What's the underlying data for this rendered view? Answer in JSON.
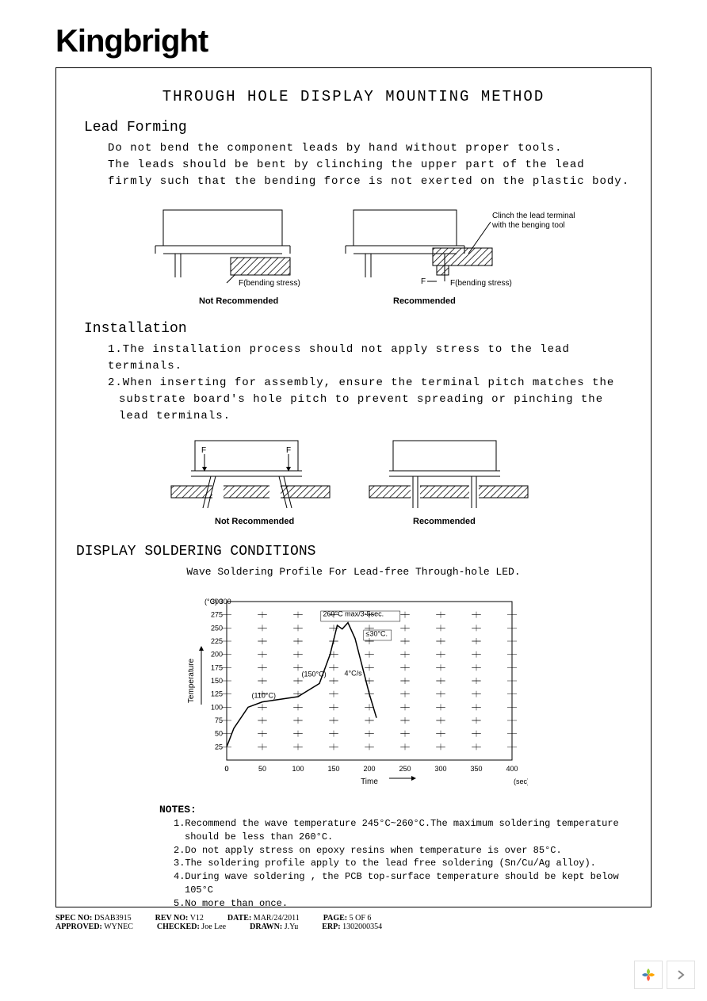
{
  "brand": "Kingbright",
  "main_title": "THROUGH HOLE DISPLAY MOUNTING METHOD",
  "lead_forming": {
    "title": "Lead Forming",
    "p1": "Do not bend the component leads by hand without proper tools.",
    "p2": "The leads should be bent by clinching the upper part of the lead firmly such that the bending force is not exerted on the plastic body."
  },
  "diagram1": {
    "not_rec": "Not Recommended",
    "rec": "Recommended",
    "stress": "F(bending stress)",
    "f": "F",
    "clinch": "Clinch the lead terminal with the benging tool"
  },
  "installation": {
    "title": "Installation",
    "p1": "1.The installation process should not apply stress to the lead terminals.",
    "p2": "2.When inserting for assembly, ensure the terminal pitch matches the substrate board's  hole pitch to prevent spreading or pinching the lead terminals."
  },
  "diagram2": {
    "not_rec": "Not Recommended",
    "rec": "Recommended",
    "f": "F"
  },
  "soldering": {
    "title": "DISPLAY SOLDERING CONDITIONS",
    "chart_title": "Wave Soldering Profile For Lead-free Through-hole LED."
  },
  "chart": {
    "type": "line",
    "background_color": "#ffffff",
    "axis_color": "#000000",
    "grid_color": "#000000",
    "line_color": "#000000",
    "line_width": 1.5,
    "xlabel": "Time",
    "xunit": "(sec)",
    "ylabel": "Temperature",
    "yunit": "(°C)",
    "xlim": [
      0,
      400
    ],
    "ylim": [
      0,
      300
    ],
    "xtick_step": 50,
    "ytick_step": 25,
    "xticks": [
      0,
      50,
      100,
      150,
      200,
      250,
      300,
      350,
      400
    ],
    "yticks": [
      25,
      50,
      75,
      100,
      125,
      150,
      175,
      200,
      225,
      250,
      275,
      300
    ],
    "profile_points": [
      [
        0,
        25
      ],
      [
        10,
        60
      ],
      [
        30,
        100
      ],
      [
        50,
        110
      ],
      [
        100,
        120
      ],
      [
        130,
        145
      ],
      [
        145,
        200
      ],
      [
        155,
        255
      ],
      [
        162,
        248
      ],
      [
        170,
        260
      ],
      [
        180,
        230
      ],
      [
        200,
        125
      ],
      [
        210,
        80
      ]
    ],
    "annotations": {
      "a1": "(110°C)",
      "a2": "(150°C)",
      "a3": "260°C max/3-5sec.",
      "a4": "4°C/s",
      "a5": "≤30°C."
    },
    "label_fontsize": 10,
    "tick_fontsize": 9
  },
  "notes": {
    "title": "NOTES:",
    "n1": "1.Recommend the wave temperature 245°C~260°C.The maximum soldering temperature should be less than 260°C.",
    "n2": "2.Do not apply stress on epoxy resins when temperature is over 85°C.",
    "n3": "3.The soldering profile apply to the lead free soldering (Sn/Cu/Ag alloy).",
    "n4": "4.During wave soldering , the PCB top-surface temperature should be kept below 105°C",
    "n5": "5.No more than once."
  },
  "footer": {
    "spec_label": "SPEC NO:",
    "spec": "DSAB3915",
    "rev_label": "REV NO:",
    "rev": "V12",
    "date_label": "DATE:",
    "date": "MAR/24/2011",
    "page_label": "PAGE:",
    "page": "5 OF 6",
    "approved_label": "APPROVED:",
    "approved": "WYNEC",
    "checked_label": "CHECKED:",
    "checked": "Joe Lee",
    "drawn_label": "DRAWN:",
    "drawn": "J.Yu",
    "erp_label": "ERP:",
    "erp": "1302000354"
  }
}
